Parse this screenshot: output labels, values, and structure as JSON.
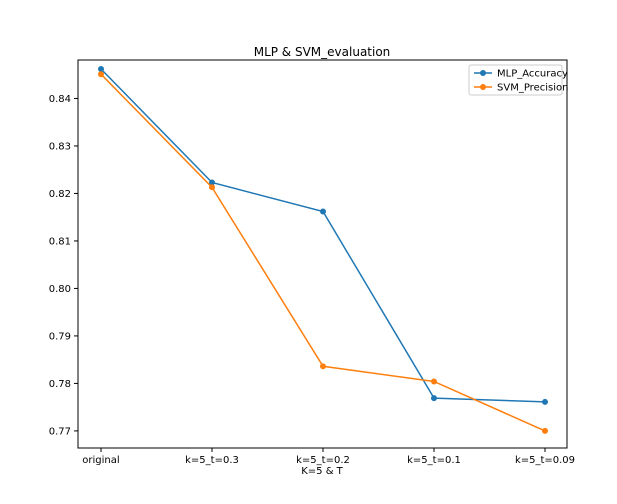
{
  "chart_data": {
    "type": "line",
    "title": "MLP & SVM_evaluation",
    "xlabel": "K=5 & T",
    "ylabel": "",
    "categories": [
      "original",
      "k=5_t=0.3",
      "k=5_t=0.2",
      "k=5_t=0.1",
      "k=5_t=0.09"
    ],
    "series": [
      {
        "name": "MLP_Accuracy",
        "color": "#1f77b4",
        "values": [
          0.8462,
          0.8223,
          0.8162,
          0.7769,
          0.7761
        ]
      },
      {
        "name": "SVM_Precision",
        "color": "#ff7f0e",
        "values": [
          0.8451,
          0.8213,
          0.7836,
          0.7804,
          0.77
        ]
      }
    ],
    "ylim": [
      0.7664,
      0.8481
    ],
    "yticks": [
      0.77,
      0.78,
      0.79,
      0.8,
      0.81,
      0.82,
      0.83,
      0.84
    ],
    "ytick_labels": [
      "0.77",
      "0.78",
      "0.79",
      "0.80",
      "0.81",
      "0.82",
      "0.83",
      "0.84"
    ],
    "grid": false,
    "legend_position": "top-right"
  }
}
